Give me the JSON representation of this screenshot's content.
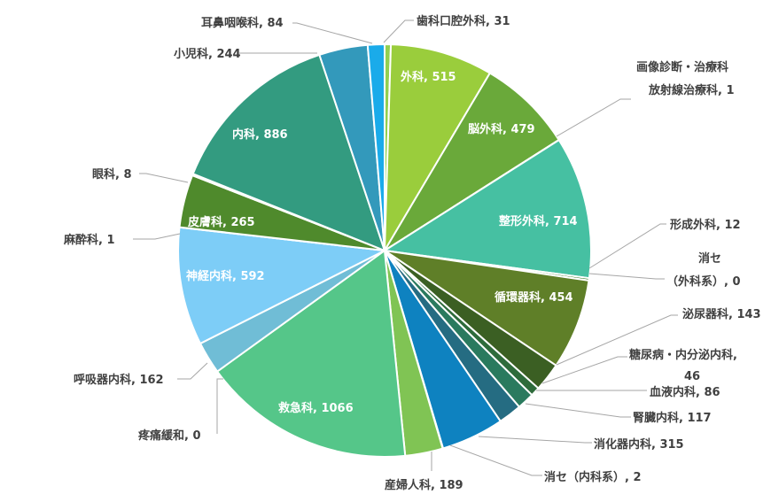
{
  "chart_data": {
    "type": "pie",
    "title": "",
    "slices": [
      {
        "label": "歯科口腔外科",
        "value": 31,
        "color": "#92d050",
        "text": "歯科口腔外科, 31"
      },
      {
        "label": "外科",
        "value": 515,
        "color": "#9acd3c",
        "text": "外科, 515"
      },
      {
        "label": "脳外科",
        "value": 479,
        "color": "#6aa93a",
        "text": "脳外科, 479"
      },
      {
        "label": "画像診断・治療科",
        "value": 0,
        "color": "#4a8a2e",
        "text": "画像診断・治療科"
      },
      {
        "label": "放射線治療科",
        "value": 1,
        "color": "#4a8a2e",
        "text": "放射線治療科, 1"
      },
      {
        "label": "整形外科",
        "value": 714,
        "color": "#46c0a2",
        "text": "整形外科, 714"
      },
      {
        "label": "形成外科",
        "value": 12,
        "color": "#3f7f2c",
        "text": "形成外科, 12"
      },
      {
        "label": "消セ（外科系）",
        "value": 0,
        "color": "#3f7f2c",
        "text_line1": "消セ",
        "text_line2": "（外科系）, 0"
      },
      {
        "label": "循環器科",
        "value": 454,
        "color": "#5f7f28",
        "text": "循環器科, 454"
      },
      {
        "label": "泌尿器科",
        "value": 143,
        "color": "#3b5f23",
        "text": "泌尿器科, 143"
      },
      {
        "label": "糖尿病・内分泌内科",
        "value": 46,
        "color": "#2e6b3b",
        "text_line1": "糖尿病・内分泌内科,",
        "text_line2": "46"
      },
      {
        "label": "血液内科",
        "value": 86,
        "color": "#2a7a5e",
        "text": "血液内科, 86"
      },
      {
        "label": "腎臓内科",
        "value": 117,
        "color": "#256c82",
        "text": "腎臓内科, 117"
      },
      {
        "label": "消化器内科",
        "value": 315,
        "color": "#0e82c0",
        "text": "消化器内科, 315"
      },
      {
        "label": "消セ（内科系）",
        "value": 2,
        "color": "#1d6aa3",
        "text": "消セ（内科系）, 2"
      },
      {
        "label": "産婦人科",
        "value": 189,
        "color": "#80c454",
        "text": "産婦人科, 189"
      },
      {
        "label": "救急科",
        "value": 1066,
        "color": "#55c689",
        "text": "救急科, 1066"
      },
      {
        "label": "疼痛緩和",
        "value": 0,
        "color": "#7ac1d6",
        "text": "疼痛緩和, 0"
      },
      {
        "label": "呼吸器内科",
        "value": 162,
        "color": "#70bdd6",
        "text": "呼吸器内科, 162"
      },
      {
        "label": "神経内科",
        "value": 592,
        "color": "#7dcdf7",
        "text": "神経内科, 592"
      },
      {
        "label": "麻酔科",
        "value": 1,
        "color": "#4c8a2e",
        "text": "麻酔科, 1"
      },
      {
        "label": "皮膚科",
        "value": 265,
        "color": "#4f8a2c",
        "text": "皮膚科, 265"
      },
      {
        "label": "眼科",
        "value": 8,
        "color": "#2f7a50",
        "text": "眼科, 8"
      },
      {
        "label": "内科",
        "value": 886,
        "color": "#339b80",
        "text": "内科, 886"
      },
      {
        "label": "小児科",
        "value": 244,
        "color": "#3399bb",
        "text": "小児科, 244"
      },
      {
        "label": "耳鼻咽喉科",
        "value": 84,
        "color": "#1aabea",
        "text": "耳鼻咽喉科, 84"
      }
    ]
  }
}
